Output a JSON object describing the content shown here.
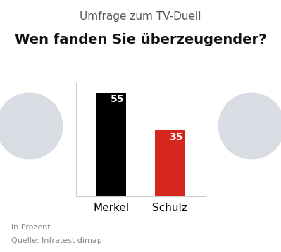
{
  "chart_data": {
    "type": "bar",
    "supertitle": "Umfrage zum TV-Duell",
    "title": "Wen fanden Sie überzeugender?",
    "categories": [
      "Merkel",
      "Schulz"
    ],
    "values": [
      55,
      35
    ],
    "colors": [
      "#000000",
      "#d4261c"
    ],
    "ylim": [
      0,
      60
    ],
    "yticks": [],
    "data_labels": true,
    "tick_labels": "x",
    "grid": false,
    "unit_note": "in Prozent",
    "source": "Quelle: Infratest dimap"
  }
}
